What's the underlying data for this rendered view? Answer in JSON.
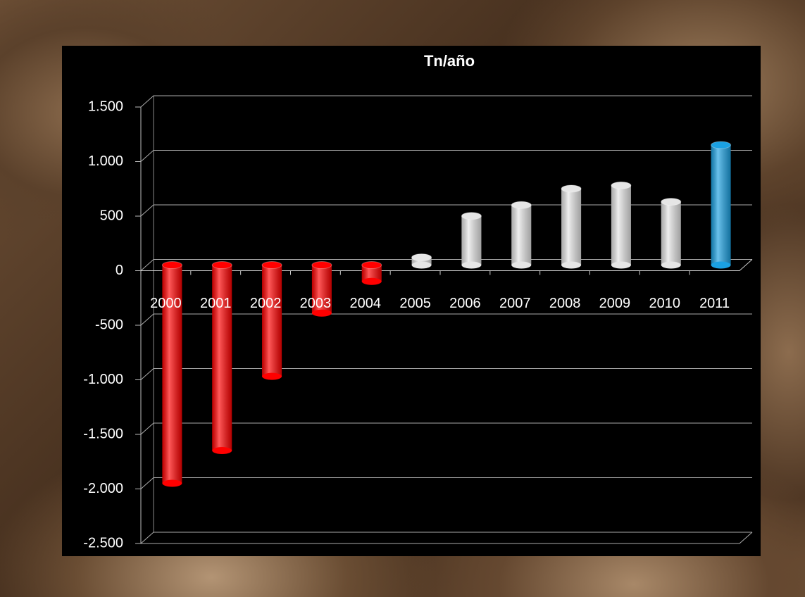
{
  "chart_data": {
    "type": "bar",
    "title": "Tn/año",
    "categories": [
      "2000",
      "2001",
      "2002",
      "2003",
      "2004",
      "2005",
      "2006",
      "2007",
      "2008",
      "2009",
      "2010",
      "2011"
    ],
    "values": [
      -2000,
      -1700,
      -1020,
      -440,
      -150,
      70,
      450,
      550,
      700,
      730,
      580,
      1100
    ],
    "colors": [
      "#ff0000",
      "#ff0000",
      "#ff0000",
      "#ff0000",
      "#ff0000",
      "#e6e6e6",
      "#e6e6e6",
      "#e6e6e6",
      "#e6e6e6",
      "#e6e6e6",
      "#e6e6e6",
      "#1ba1e2"
    ],
    "ylim": [
      -2500,
      1500
    ],
    "yticks": [
      {
        "value": -2500,
        "label": "-2.500"
      },
      {
        "value": -2000,
        "label": "-2.000"
      },
      {
        "value": -1500,
        "label": "-1.500"
      },
      {
        "value": -1000,
        "label": "-1.000"
      },
      {
        "value": -500,
        "label": "-500"
      },
      0,
      500,
      {
        "value": 1000,
        "label": "1.000"
      },
      {
        "value": 1500,
        "label": "1.500"
      }
    ],
    "grid": true
  }
}
